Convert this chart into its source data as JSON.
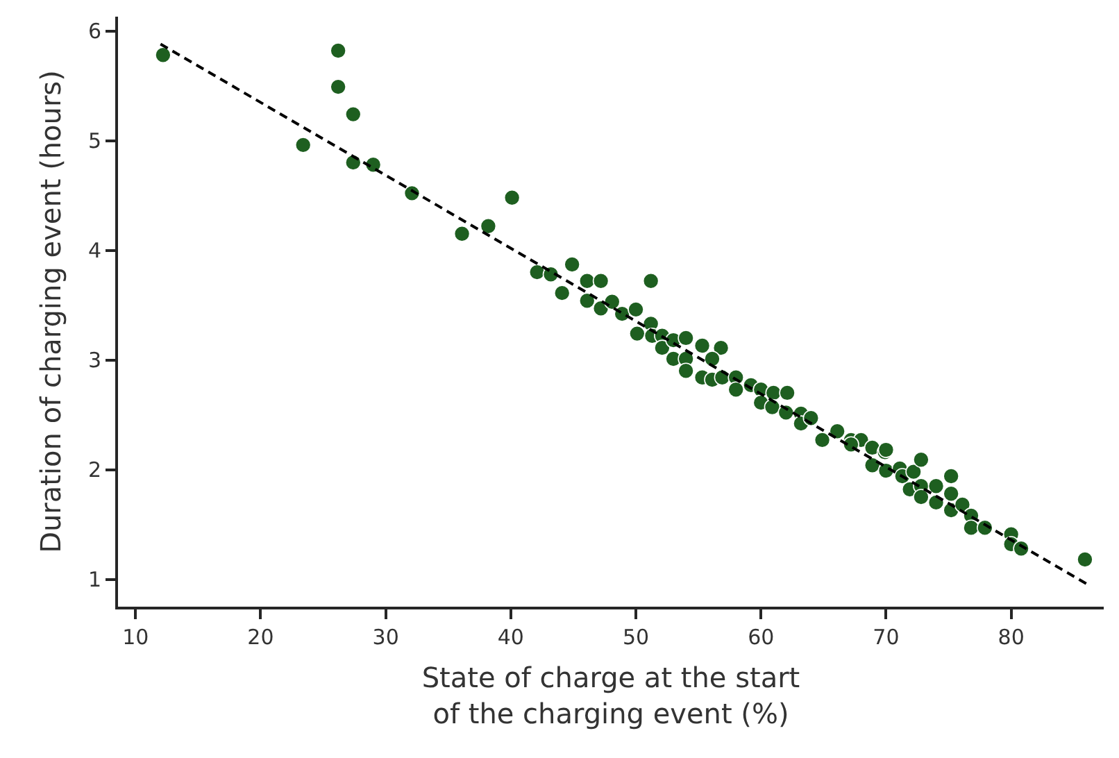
{
  "chart_data": {
    "type": "scatter",
    "xlabel": "State of charge at the start\nof the charging event (%)",
    "ylabel": "Duration of charging event (hours)",
    "xlim": [
      8.6,
      87.4
    ],
    "ylim": [
      0.75,
      6.13
    ],
    "xticks": [
      10,
      20,
      30,
      40,
      50,
      60,
      70,
      80
    ],
    "yticks": [
      1,
      2,
      3,
      4,
      5,
      6
    ],
    "grid": false,
    "legend": false,
    "marker": "circle",
    "series": [
      {
        "color": "#1e5f20",
        "x": [
          12.2,
          26.2,
          26.2,
          27.4,
          23.4,
          27.4,
          29.0,
          32.1,
          36.1,
          38.2,
          40.1,
          42.1,
          43.2,
          44.1,
          44.9,
          46.1,
          47.2,
          46.1,
          47.2,
          48.1,
          48.9,
          50.0,
          50.1,
          51.2,
          51.2,
          51.3,
          52.1,
          52.1,
          53.0,
          53.0,
          54.0,
          54.0,
          55.3,
          56.8,
          56.1,
          54.0,
          55.3,
          56.1,
          56.9,
          58.0,
          58.0,
          59.2,
          60.0,
          60.0,
          61.0,
          60.9,
          62.1,
          62.0,
          63.2,
          63.2,
          64.0,
          64.9,
          66.1,
          67.2,
          68.0,
          68.9,
          69.9,
          67.2,
          68.9,
          70.0,
          70.0,
          71.1,
          71.3,
          71.9,
          72.2,
          72.8,
          72.8,
          72.8,
          74.0,
          74.0,
          75.2,
          75.2,
          75.2,
          76.1,
          76.8,
          76.8,
          77.9,
          80.0,
          80.0,
          80.8,
          85.9
        ],
        "values": [
          5.78,
          5.82,
          5.49,
          5.24,
          4.96,
          4.8,
          4.78,
          4.52,
          4.15,
          4.22,
          4.48,
          3.8,
          3.78,
          3.61,
          3.87,
          3.72,
          3.72,
          3.54,
          3.47,
          3.53,
          3.42,
          3.46,
          3.24,
          3.72,
          3.33,
          3.22,
          3.22,
          3.11,
          3.18,
          3.01,
          3.2,
          3.01,
          3.13,
          3.11,
          3.01,
          2.9,
          2.84,
          2.82,
          2.84,
          2.84,
          2.73,
          2.77,
          2.73,
          2.61,
          2.7,
          2.57,
          2.7,
          2.52,
          2.51,
          2.42,
          2.47,
          2.27,
          2.35,
          2.27,
          2.27,
          2.2,
          2.16,
          2.23,
          2.04,
          2.18,
          1.99,
          2.01,
          1.94,
          1.82,
          1.98,
          2.09,
          1.85,
          1.75,
          1.85,
          1.7,
          1.94,
          1.78,
          1.63,
          1.68,
          1.58,
          1.47,
          1.47,
          1.41,
          1.32,
          1.28,
          1.18
        ]
      },
      {
        "type": "line",
        "color": "#000000",
        "line_style": "dashed",
        "marker": "none",
        "x": [
          12,
          86
        ],
        "values": [
          5.88,
          0.96
        ]
      }
    ]
  }
}
